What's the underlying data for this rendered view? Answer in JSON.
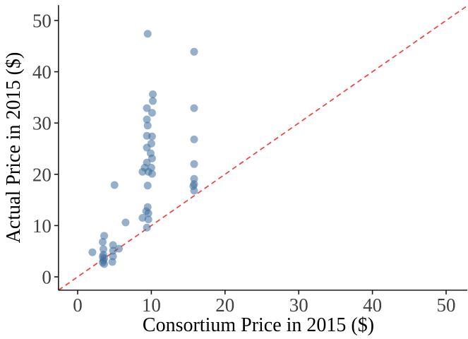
{
  "chart_data": {
    "type": "scatter",
    "title": "",
    "xlabel": "Consortium Price in 2015 ($)",
    "ylabel": "Actual Price in 2015 ($)",
    "xlim": [
      -2.6,
      53
    ],
    "ylim": [
      -2.6,
      53
    ],
    "x_ticks": [
      "0",
      "10",
      "20",
      "30",
      "40",
      "50"
    ],
    "x_tick_values": [
      0,
      10,
      20,
      30,
      40,
      50
    ],
    "y_ticks": [
      "0",
      "10",
      "20",
      "30",
      "40",
      "50"
    ],
    "y_tick_values": [
      0,
      10,
      20,
      30,
      40,
      50
    ],
    "grid": false,
    "legend": "none",
    "point_color": "#3f6f9f",
    "point_opacity": 0.55,
    "point_radius": 5.5,
    "axis_color": "#1a1a1a",
    "tick_label_color": "#404040",
    "reference_line": {
      "type": "identity",
      "equation": "y = x",
      "style": "dashed",
      "color": "#ee4040"
    },
    "points": [
      [
        2.0,
        4.8
      ],
      [
        3.6,
        8.0
      ],
      [
        3.4,
        6.8
      ],
      [
        3.5,
        5.4
      ],
      [
        3.5,
        4.3
      ],
      [
        3.4,
        3.9
      ],
      [
        3.6,
        3.6
      ],
      [
        3.5,
        3.2
      ],
      [
        3.4,
        2.8
      ],
      [
        3.6,
        2.5
      ],
      [
        4.8,
        6.2
      ],
      [
        4.8,
        5.1
      ],
      [
        4.8,
        4.0
      ],
      [
        4.7,
        2.9
      ],
      [
        5.6,
        5.5
      ],
      [
        5.0,
        17.9
      ],
      [
        6.5,
        10.6
      ],
      [
        9.5,
        47.4
      ],
      [
        10.2,
        35.6
      ],
      [
        10.2,
        34.3
      ],
      [
        9.4,
        32.9
      ],
      [
        10.1,
        32.0
      ],
      [
        9.4,
        30.7
      ],
      [
        9.5,
        29.5
      ],
      [
        9.4,
        27.5
      ],
      [
        10.1,
        27.4
      ],
      [
        10.0,
        26.0
      ],
      [
        9.4,
        25.2
      ],
      [
        9.9,
        24.1
      ],
      [
        10.1,
        23.1
      ],
      [
        9.4,
        22.3
      ],
      [
        9.1,
        21.3
      ],
      [
        10.0,
        21.3
      ],
      [
        8.8,
        20.5
      ],
      [
        9.6,
        20.5
      ],
      [
        10.1,
        20.1
      ],
      [
        9.5,
        17.8
      ],
      [
        9.5,
        13.6
      ],
      [
        9.3,
        12.8
      ],
      [
        9.6,
        12.4
      ],
      [
        8.8,
        11.5
      ],
      [
        9.6,
        11.2
      ],
      [
        9.4,
        9.6
      ],
      [
        15.8,
        43.9
      ],
      [
        15.8,
        32.9
      ],
      [
        15.8,
        26.8
      ],
      [
        15.8,
        22.0
      ],
      [
        15.8,
        19.1
      ],
      [
        15.8,
        18.1
      ],
      [
        15.7,
        17.7
      ],
      [
        15.8,
        16.8
      ]
    ]
  }
}
